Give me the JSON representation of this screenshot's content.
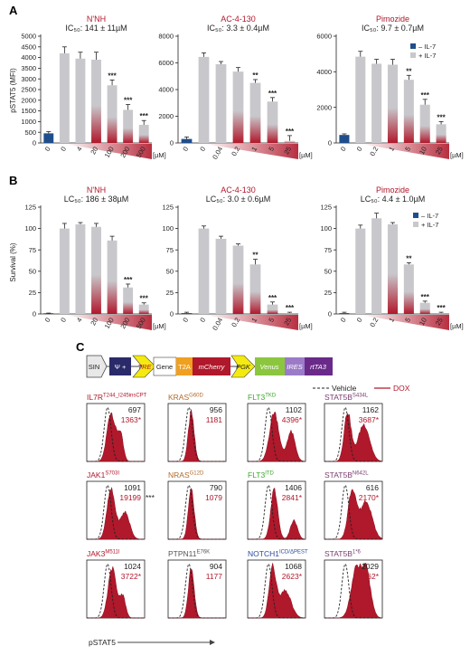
{
  "panels": {
    "A": "A",
    "B": "B",
    "C": "C"
  },
  "colors": {
    "minus_il7": "#1f4e8c",
    "plus_il7": "#c8c8cc",
    "red": "#b0182b",
    "gradient_light": "#f6d9d9"
  },
  "unit_label": "[µM]",
  "panel_A": {
    "ylabel": "pSTAT5 (MFI)",
    "legend": [
      "– IL-7",
      "+ IL-7"
    ],
    "charts": [
      {
        "title": "N'NH",
        "subtitle": "IC₅₀: 141 ± 11µM",
        "categories": [
          "0",
          "0",
          "4",
          "20",
          "100",
          "200",
          "500"
        ],
        "ymax": 5000,
        "yticks": [
          0,
          500,
          1000,
          1500,
          2000,
          2500,
          3000,
          3500,
          4000,
          4500,
          5000
        ]
      },
      {
        "title": "AC-4-130",
        "subtitle": "IC₅₀: 3.3 ± 0.4µM",
        "categories": [
          "0",
          "0",
          "0.04",
          "0.2",
          "1",
          "5",
          "25"
        ],
        "ymax": 8000,
        "yticks": [
          0,
          2000,
          4000,
          6000,
          8000
        ]
      },
      {
        "title": "Pimozide",
        "subtitle": "IC₅₀: 9.7 ± 0.7µM",
        "categories": [
          "0",
          "0",
          "0.2",
          "1",
          "5",
          "10",
          "25"
        ],
        "ymax": 6000,
        "yticks": [
          0,
          2000,
          4000,
          6000
        ]
      }
    ]
  },
  "panel_B": {
    "ylabel": "Survival (%)",
    "legend": [
      "– IL-7",
      "+ IL-7"
    ],
    "charts": [
      {
        "title": "N'NH",
        "subtitle": "LC₅₀: 186 ± 38µM",
        "categories": [
          "0",
          "0",
          "4",
          "20",
          "100",
          "200",
          "500"
        ],
        "ymax": 125,
        "yticks": [
          0,
          25,
          50,
          75,
          100,
          125
        ]
      },
      {
        "title": "AC-4-130",
        "subtitle": "LC₅₀: 3.0 ± 0.6µM",
        "categories": [
          "0",
          "0",
          "0.04",
          "0.2",
          "1",
          "5",
          "25"
        ],
        "ymax": 125,
        "yticks": [
          0,
          25,
          50,
          75,
          100,
          125
        ]
      },
      {
        "title": "Pimozide",
        "subtitle": "LC₅₀: 4.4 ± 1.0µM",
        "categories": [
          "0",
          "0",
          "0.2",
          "1",
          "5",
          "10",
          "25"
        ],
        "ymax": 125,
        "yticks": [
          0,
          25,
          50,
          75,
          100,
          125
        ]
      }
    ]
  },
  "chart_data": [
    {
      "type": "bar",
      "title": "N'NH",
      "ylabel": "pSTAT5 (MFI)",
      "categories": [
        "0",
        "0",
        "4",
        "20",
        "100",
        "200",
        "500"
      ],
      "series": [
        {
          "name": "– IL-7",
          "values": [
            450,
            null,
            null,
            null,
            null,
            null,
            null
          ]
        },
        {
          "name": "+ IL-7",
          "values": [
            null,
            4200,
            3950,
            3900,
            2700,
            1550,
            850
          ]
        }
      ],
      "errors": [
        80,
        300,
        300,
        350,
        250,
        250,
        200
      ],
      "significance": [
        "",
        "",
        "",
        "",
        "***",
        "***",
        "***"
      ],
      "ylim": [
        0,
        5000
      ]
    },
    {
      "type": "bar",
      "title": "AC-4-130",
      "ylabel": "pSTAT5 (MFI)",
      "categories": [
        "0",
        "0",
        "0.04",
        "0.2",
        "1",
        "5",
        "25"
      ],
      "series": [
        {
          "name": "– IL-7",
          "values": [
            300,
            null,
            null,
            null,
            null,
            null,
            null
          ]
        },
        {
          "name": "+ IL-7",
          "values": [
            null,
            6450,
            5900,
            5350,
            4500,
            3100,
            150
          ]
        }
      ],
      "errors": [
        150,
        300,
        200,
        300,
        250,
        300,
        400
      ],
      "significance": [
        "",
        "",
        "",
        "",
        "**",
        "***",
        "***"
      ],
      "ylim": [
        0,
        8000
      ]
    },
    {
      "type": "bar",
      "title": "Pimozide",
      "ylabel": "pSTAT5 (MFI)",
      "categories": [
        "0",
        "0",
        "0.2",
        "1",
        "5",
        "10",
        "25"
      ],
      "series": [
        {
          "name": "– IL-7",
          "values": [
            450,
            null,
            null,
            null,
            null,
            null,
            null
          ]
        },
        {
          "name": "+ IL-7",
          "values": [
            null,
            4850,
            4450,
            4400,
            3550,
            2150,
            1050
          ]
        }
      ],
      "errors": [
        60,
        300,
        250,
        300,
        250,
        300,
        150
      ],
      "significance": [
        "",
        "",
        "",
        "",
        "**",
        "***",
        "***"
      ],
      "ylim": [
        0,
        6000
      ]
    },
    {
      "type": "bar",
      "title": "N'NH",
      "ylabel": "Survival (%)",
      "categories": [
        "0",
        "0",
        "4",
        "20",
        "100",
        "200",
        "500"
      ],
      "series": [
        {
          "name": "– IL-7",
          "values": [
            0,
            null,
            null,
            null,
            null,
            null,
            null
          ]
        },
        {
          "name": "+ IL-7",
          "values": [
            null,
            100,
            105,
            102,
            86,
            31,
            11
          ]
        }
      ],
      "errors": [
        1,
        6,
        2,
        4,
        5,
        4,
        2
      ],
      "significance": [
        "",
        "",
        "",
        "",
        "",
        "***",
        "***"
      ],
      "ylim": [
        0,
        125
      ]
    },
    {
      "type": "bar",
      "title": "AC-4-130",
      "ylabel": "Survival (%)",
      "categories": [
        "0",
        "0",
        "0.04",
        "0.2",
        "1",
        "5",
        "25"
      ],
      "series": [
        {
          "name": "– IL-7",
          "values": [
            1,
            null,
            null,
            null,
            null,
            null,
            null
          ]
        },
        {
          "name": "+ IL-7",
          "values": [
            null,
            100,
            88,
            80,
            58,
            11,
            1
          ]
        }
      ],
      "errors": [
        1,
        3,
        3,
        2,
        6,
        3,
        1
      ],
      "significance": [
        "",
        "",
        "",
        "",
        "**",
        "***",
        "***"
      ],
      "ylim": [
        0,
        125
      ]
    },
    {
      "type": "bar",
      "title": "Pimozide",
      "ylabel": "Survival (%)",
      "categories": [
        "0",
        "0",
        "0.2",
        "1",
        "5",
        "10",
        "25"
      ],
      "series": [
        {
          "name": "– IL-7",
          "values": [
            1,
            null,
            null,
            null,
            null,
            null,
            null
          ]
        },
        {
          "name": "+ IL-7",
          "values": [
            null,
            100,
            112,
            105,
            58,
            13,
            1
          ]
        }
      ],
      "errors": [
        1,
        4,
        6,
        2,
        2,
        2,
        1
      ],
      "significance": [
        "",
        "",
        "",
        "",
        "**",
        "***",
        "***"
      ],
      "ylim": [
        0,
        125
      ]
    }
  ],
  "construct": {
    "segments": [
      "SIN",
      "Ψ +",
      "TRE",
      "Gene",
      "T2A",
      "mCherry",
      "PGK",
      "Venus",
      "IRES",
      "rtTA3"
    ]
  },
  "flow": {
    "legend": {
      "vehicle": "Vehicle",
      "dox": "DOX"
    },
    "xlabel": "pSTAT5",
    "cells": [
      {
        "name": "IL7R",
        "sup": "T244_I245insCPT",
        "color": "#b0182b",
        "v": "697",
        "d": "1363*",
        "stars": ""
      },
      {
        "name": "KRAS",
        "sup": "G60D",
        "color": "#b06a2a",
        "v": "956",
        "d": "1181",
        "stars": ""
      },
      {
        "name": "FLT3",
        "sup": "TKD",
        "color": "#3aa82a",
        "v": "1102",
        "d": "4396*",
        "stars": ""
      },
      {
        "name": "STAT5B",
        "sup": "S434L",
        "color": "#7a3b6e",
        "v": "1162",
        "d": "3687*",
        "stars": ""
      },
      {
        "name": "JAK1",
        "sup": "S703I",
        "color": "#b0182b",
        "v": "1091",
        "d": "19199",
        "stars": "***"
      },
      {
        "name": "NRAS",
        "sup": "G12D",
        "color": "#b06a2a",
        "v": "790",
        "d": "1079",
        "stars": ""
      },
      {
        "name": "FLT3",
        "sup": "ITD",
        "color": "#3aa82a",
        "v": "1406",
        "d": "2841*",
        "stars": ""
      },
      {
        "name": "STAT5B",
        "sup": "N642L",
        "color": "#7a3b6e",
        "v": "616",
        "d": "2170*",
        "stars": ""
      },
      {
        "name": "JAK3",
        "sup": "M511I",
        "color": "#b0182b",
        "v": "1024",
        "d": "3722*",
        "stars": ""
      },
      {
        "name": "PTPN11",
        "sup": "E76K",
        "color": "#555555",
        "v": "904",
        "d": "1177",
        "stars": ""
      },
      {
        "name": "NOTCH1",
        "sup": "ICD/ΔPEST",
        "color": "#2a4c9a",
        "v": "1068",
        "d": "2623*",
        "stars": ""
      },
      {
        "name": "STAT5B",
        "sup": "1*6",
        "color": "#7a3b6e",
        "v": "2029",
        "d": "4662*",
        "stars": ""
      }
    ]
  }
}
